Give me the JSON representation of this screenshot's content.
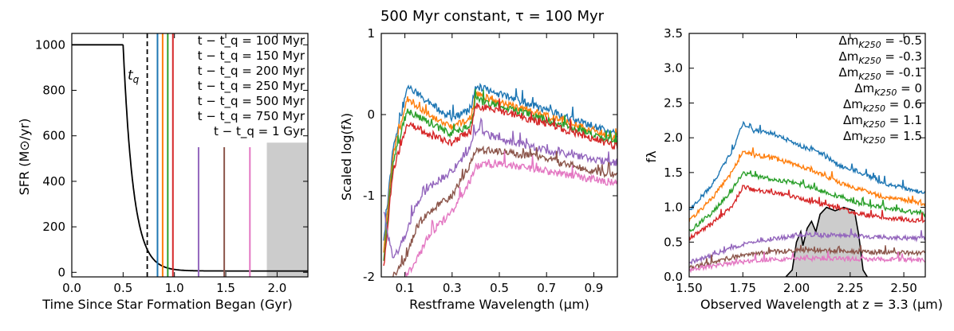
{
  "figure_title": "500 Myr constant, τ = 100 Myr",
  "chart_data": [
    {
      "type": "line",
      "title": "",
      "xlabel": "Time Since Star Formation Began (Gyr)",
      "ylabel": "SFR (M⊙/yr)",
      "xlim": [
        0.0,
        2.3
      ],
      "ylim": [
        -20,
        1050
      ],
      "xticks": [
        "0.0",
        "0.5",
        "1.0",
        "1.5",
        "2.0"
      ],
      "xtick_values": [
        0.0,
        0.5,
        1.0,
        1.5,
        2.0
      ],
      "yticks": [
        "0",
        "200",
        "400",
        "600",
        "800",
        "1000"
      ],
      "ytick_values": [
        0,
        200,
        400,
        600,
        800,
        1000
      ],
      "sfh": {
        "constant_sfr": 1000,
        "burst_end": 0.5,
        "tau": 0.1,
        "floor": 6
      },
      "tq_label": "t_q",
      "tq": 0.735,
      "observation_lines": [
        {
          "label": "t − t_q = 100 Myr",
          "t": 0.835,
          "color": "#1f77b4",
          "full": true
        },
        {
          "label": "t − t_q = 150 Myr",
          "t": 0.885,
          "color": "#ff7f0e",
          "full": true
        },
        {
          "label": "t − t_q = 200 Myr",
          "t": 0.935,
          "color": "#2ca02c",
          "full": true
        },
        {
          "label": "t − t_q = 250 Myr",
          "t": 0.985,
          "color": "#d62728",
          "full": true
        },
        {
          "label": "t − t_q = 500 Myr",
          "t": 1.235,
          "color": "#9467bd",
          "full": false
        },
        {
          "label": "t − t_q = 750 Myr",
          "t": 1.485,
          "color": "#8c564b",
          "full": false
        },
        {
          "label": "t − t_q = 1 Gyr",
          "t": 1.735,
          "color": "#e377c2",
          "full": false
        }
      ],
      "short_line_top": 550,
      "shaded_region": {
        "x": [
          1.9,
          2.3
        ],
        "y_top": 570
      }
    },
    {
      "type": "line",
      "title": "",
      "xlabel": "Restframe Wavelength (μm)",
      "ylabel": "Scaled log(fλ)",
      "xlim": [
        0.0,
        1.0
      ],
      "ylim": [
        -2,
        1
      ],
      "xticks": [
        "0.1",
        "0.3",
        "0.5",
        "0.7",
        "0.9"
      ],
      "xtick_values": [
        0.1,
        0.3,
        0.5,
        0.7,
        0.9
      ],
      "yticks": [
        "-2",
        "-1",
        "0",
        "1"
      ],
      "ytick_values": [
        -2,
        -1,
        0,
        1
      ],
      "series": [
        {
          "name": "100 Myr",
          "color": "#1f77b4",
          "values": [
            {
              "x": 0.01,
              "y": -1.6
            },
            {
              "x": 0.05,
              "y": -0.4
            },
            {
              "x": 0.09,
              "y": 0.05
            },
            {
              "x": 0.11,
              "y": 0.35
            },
            {
              "x": 0.2,
              "y": 0.15
            },
            {
              "x": 0.3,
              "y": -0.05
            },
            {
              "x": 0.38,
              "y": 0.05
            },
            {
              "x": 0.4,
              "y": 0.35
            },
            {
              "x": 0.5,
              "y": 0.25
            },
            {
              "x": 0.7,
              "y": 0.05
            },
            {
              "x": 0.9,
              "y": -0.15
            },
            {
              "x": 1.0,
              "y": -0.25
            }
          ]
        },
        {
          "name": "150 Myr",
          "color": "#ff7f0e",
          "values": [
            {
              "x": 0.01,
              "y": -1.7
            },
            {
              "x": 0.05,
              "y": -0.5
            },
            {
              "x": 0.09,
              "y": -0.05
            },
            {
              "x": 0.11,
              "y": 0.2
            },
            {
              "x": 0.2,
              "y": 0.0
            },
            {
              "x": 0.3,
              "y": -0.15
            },
            {
              "x": 0.38,
              "y": -0.05
            },
            {
              "x": 0.4,
              "y": 0.25
            },
            {
              "x": 0.5,
              "y": 0.15
            },
            {
              "x": 0.7,
              "y": -0.02
            },
            {
              "x": 0.9,
              "y": -0.2
            },
            {
              "x": 1.0,
              "y": -0.3
            }
          ]
        },
        {
          "name": "200 Myr",
          "color": "#2ca02c",
          "values": [
            {
              "x": 0.01,
              "y": -1.8
            },
            {
              "x": 0.05,
              "y": -0.6
            },
            {
              "x": 0.09,
              "y": -0.15
            },
            {
              "x": 0.11,
              "y": 0.05
            },
            {
              "x": 0.2,
              "y": -0.1
            },
            {
              "x": 0.3,
              "y": -0.25
            },
            {
              "x": 0.38,
              "y": -0.12
            },
            {
              "x": 0.4,
              "y": 0.18
            },
            {
              "x": 0.5,
              "y": 0.1
            },
            {
              "x": 0.7,
              "y": -0.07
            },
            {
              "x": 0.9,
              "y": -0.25
            },
            {
              "x": 1.0,
              "y": -0.35
            }
          ]
        },
        {
          "name": "250 Myr",
          "color": "#d62728",
          "values": [
            {
              "x": 0.01,
              "y": -1.9
            },
            {
              "x": 0.05,
              "y": -0.7
            },
            {
              "x": 0.09,
              "y": -0.3
            },
            {
              "x": 0.11,
              "y": -0.1
            },
            {
              "x": 0.2,
              "y": -0.25
            },
            {
              "x": 0.3,
              "y": -0.35
            },
            {
              "x": 0.38,
              "y": -0.2
            },
            {
              "x": 0.4,
              "y": 0.1
            },
            {
              "x": 0.5,
              "y": 0.05
            },
            {
              "x": 0.7,
              "y": -0.12
            },
            {
              "x": 0.9,
              "y": -0.3
            },
            {
              "x": 1.0,
              "y": -0.4
            }
          ]
        },
        {
          "name": "500 Myr",
          "color": "#9467bd",
          "values": [
            {
              "x": 0.01,
              "y": -1.2
            },
            {
              "x": 0.05,
              "y": -1.8
            },
            {
              "x": 0.1,
              "y": -1.5
            },
            {
              "x": 0.15,
              "y": -1.1
            },
            {
              "x": 0.2,
              "y": -0.9
            },
            {
              "x": 0.3,
              "y": -0.7
            },
            {
              "x": 0.38,
              "y": -0.4
            },
            {
              "x": 0.4,
              "y": -0.2
            },
            {
              "x": 0.5,
              "y": -0.3
            },
            {
              "x": 0.7,
              "y": -0.45
            },
            {
              "x": 0.9,
              "y": -0.55
            },
            {
              "x": 1.0,
              "y": -0.6
            }
          ]
        },
        {
          "name": "750 Myr",
          "color": "#8c564b",
          "values": [
            {
              "x": 0.05,
              "y": -2.0
            },
            {
              "x": 0.1,
              "y": -1.8
            },
            {
              "x": 0.15,
              "y": -1.4
            },
            {
              "x": 0.2,
              "y": -1.2
            },
            {
              "x": 0.3,
              "y": -1.0
            },
            {
              "x": 0.38,
              "y": -0.6
            },
            {
              "x": 0.4,
              "y": -0.45
            },
            {
              "x": 0.5,
              "y": -0.45
            },
            {
              "x": 0.7,
              "y": -0.55
            },
            {
              "x": 0.9,
              "y": -0.7
            },
            {
              "x": 1.0,
              "y": -0.75
            }
          ]
        },
        {
          "name": "1 Gyr",
          "color": "#e377c2",
          "values": [
            {
              "x": 0.1,
              "y": -2.0
            },
            {
              "x": 0.15,
              "y": -1.8
            },
            {
              "x": 0.2,
              "y": -1.5
            },
            {
              "x": 0.3,
              "y": -1.2
            },
            {
              "x": 0.38,
              "y": -0.8
            },
            {
              "x": 0.4,
              "y": -0.65
            },
            {
              "x": 0.5,
              "y": -0.6
            },
            {
              "x": 0.7,
              "y": -0.7
            },
            {
              "x": 0.9,
              "y": -0.8
            },
            {
              "x": 1.0,
              "y": -0.85
            }
          ]
        }
      ]
    },
    {
      "type": "line",
      "title": "",
      "xlabel": "Observed Wavelength at z = 3.3 (μm)",
      "ylabel": "fλ",
      "xlim": [
        1.5,
        2.6
      ],
      "ylim": [
        0.0,
        3.5
      ],
      "xticks": [
        "1.50",
        "1.75",
        "2.00",
        "2.25",
        "2.50"
      ],
      "xtick_values": [
        1.5,
        1.75,
        2.0,
        2.25,
        2.5
      ],
      "yticks": [
        "0.0",
        "0.5",
        "1.0",
        "1.5",
        "2.0",
        "2.5",
        "3.0",
        "3.5"
      ],
      "ytick_values": [
        0.0,
        0.5,
        1.0,
        1.5,
        2.0,
        2.5,
        3.0,
        3.5
      ],
      "legend_prefix": "Δm",
      "legend_subscript": "K250",
      "series": [
        {
          "name": "-0.5",
          "color": "#1f77b4",
          "values": [
            {
              "x": 1.5,
              "y": 0.95
            },
            {
              "x": 1.6,
              "y": 1.3
            },
            {
              "x": 1.7,
              "y": 1.8
            },
            {
              "x": 1.75,
              "y": 2.2
            },
            {
              "x": 1.8,
              "y": 2.1
            },
            {
              "x": 1.9,
              "y": 2.05
            },
            {
              "x": 2.0,
              "y": 1.9
            },
            {
              "x": 2.1,
              "y": 1.8
            },
            {
              "x": 2.2,
              "y": 1.6
            },
            {
              "x": 2.3,
              "y": 1.5
            },
            {
              "x": 2.4,
              "y": 1.35
            },
            {
              "x": 2.6,
              "y": 1.2
            }
          ]
        },
        {
          "name": "-0.3",
          "color": "#ff7f0e",
          "values": [
            {
              "x": 1.5,
              "y": 0.8
            },
            {
              "x": 1.6,
              "y": 1.1
            },
            {
              "x": 1.7,
              "y": 1.5
            },
            {
              "x": 1.75,
              "y": 1.8
            },
            {
              "x": 1.8,
              "y": 1.75
            },
            {
              "x": 1.9,
              "y": 1.7
            },
            {
              "x": 2.0,
              "y": 1.6
            },
            {
              "x": 2.1,
              "y": 1.5
            },
            {
              "x": 2.2,
              "y": 1.35
            },
            {
              "x": 2.3,
              "y": 1.25
            },
            {
              "x": 2.4,
              "y": 1.15
            },
            {
              "x": 2.6,
              "y": 1.05
            }
          ]
        },
        {
          "name": "-0.1",
          "color": "#2ca02c",
          "values": [
            {
              "x": 1.5,
              "y": 0.65
            },
            {
              "x": 1.6,
              "y": 0.9
            },
            {
              "x": 1.7,
              "y": 1.25
            },
            {
              "x": 1.75,
              "y": 1.5
            },
            {
              "x": 1.8,
              "y": 1.45
            },
            {
              "x": 1.9,
              "y": 1.4
            },
            {
              "x": 2.0,
              "y": 1.35
            },
            {
              "x": 2.1,
              "y": 1.25
            },
            {
              "x": 2.2,
              "y": 1.15
            },
            {
              "x": 2.3,
              "y": 1.05
            },
            {
              "x": 2.4,
              "y": 1.0
            },
            {
              "x": 2.6,
              "y": 0.9
            }
          ]
        },
        {
          "name": "0",
          "color": "#d62728",
          "values": [
            {
              "x": 1.5,
              "y": 0.55
            },
            {
              "x": 1.6,
              "y": 0.75
            },
            {
              "x": 1.7,
              "y": 1.0
            },
            {
              "x": 1.75,
              "y": 1.3
            },
            {
              "x": 1.8,
              "y": 1.25
            },
            {
              "x": 1.9,
              "y": 1.2
            },
            {
              "x": 2.0,
              "y": 1.15
            },
            {
              "x": 2.1,
              "y": 1.05
            },
            {
              "x": 2.2,
              "y": 0.98
            },
            {
              "x": 2.3,
              "y": 0.9
            },
            {
              "x": 2.4,
              "y": 0.85
            },
            {
              "x": 2.6,
              "y": 0.8
            }
          ]
        },
        {
          "name": "0.6",
          "color": "#9467bd",
          "values": [
            {
              "x": 1.5,
              "y": 0.2
            },
            {
              "x": 1.6,
              "y": 0.3
            },
            {
              "x": 1.7,
              "y": 0.42
            },
            {
              "x": 1.8,
              "y": 0.5
            },
            {
              "x": 1.9,
              "y": 0.55
            },
            {
              "x": 2.0,
              "y": 0.6
            },
            {
              "x": 2.1,
              "y": 0.6
            },
            {
              "x": 2.2,
              "y": 0.6
            },
            {
              "x": 2.3,
              "y": 0.58
            },
            {
              "x": 2.4,
              "y": 0.57
            },
            {
              "x": 2.6,
              "y": 0.55
            }
          ]
        },
        {
          "name": "1.1",
          "color": "#8c564b",
          "values": [
            {
              "x": 1.5,
              "y": 0.13
            },
            {
              "x": 1.6,
              "y": 0.2
            },
            {
              "x": 1.7,
              "y": 0.28
            },
            {
              "x": 1.8,
              "y": 0.33
            },
            {
              "x": 1.9,
              "y": 0.36
            },
            {
              "x": 2.0,
              "y": 0.38
            },
            {
              "x": 2.1,
              "y": 0.38
            },
            {
              "x": 2.2,
              "y": 0.37
            },
            {
              "x": 2.3,
              "y": 0.36
            },
            {
              "x": 2.4,
              "y": 0.35
            },
            {
              "x": 2.6,
              "y": 0.34
            }
          ]
        },
        {
          "name": "1.5",
          "color": "#e377c2",
          "values": [
            {
              "x": 1.5,
              "y": 0.1
            },
            {
              "x": 1.6,
              "y": 0.15
            },
            {
              "x": 1.7,
              "y": 0.2
            },
            {
              "x": 1.8,
              "y": 0.23
            },
            {
              "x": 1.9,
              "y": 0.25
            },
            {
              "x": 2.0,
              "y": 0.26
            },
            {
              "x": 2.1,
              "y": 0.26
            },
            {
              "x": 2.2,
              "y": 0.26
            },
            {
              "x": 2.3,
              "y": 0.25
            },
            {
              "x": 2.4,
              "y": 0.25
            },
            {
              "x": 2.6,
              "y": 0.24
            }
          ]
        }
      ],
      "filter_curve": {
        "color": "#000000",
        "fill": "#cccccc",
        "values": [
          {
            "x": 1.95,
            "y": 0.0
          },
          {
            "x": 1.98,
            "y": 0.1
          },
          {
            "x": 2.0,
            "y": 0.5
          },
          {
            "x": 2.02,
            "y": 0.65
          },
          {
            "x": 2.03,
            "y": 0.45
          },
          {
            "x": 2.05,
            "y": 0.7
          },
          {
            "x": 2.07,
            "y": 0.8
          },
          {
            "x": 2.09,
            "y": 0.65
          },
          {
            "x": 2.11,
            "y": 0.9
          },
          {
            "x": 2.14,
            "y": 1.0
          },
          {
            "x": 2.18,
            "y": 0.95
          },
          {
            "x": 2.22,
            "y": 1.0
          },
          {
            "x": 2.27,
            "y": 0.95
          },
          {
            "x": 2.29,
            "y": 0.6
          },
          {
            "x": 2.31,
            "y": 0.1
          },
          {
            "x": 2.33,
            "y": 0.0
          }
        ]
      }
    }
  ]
}
